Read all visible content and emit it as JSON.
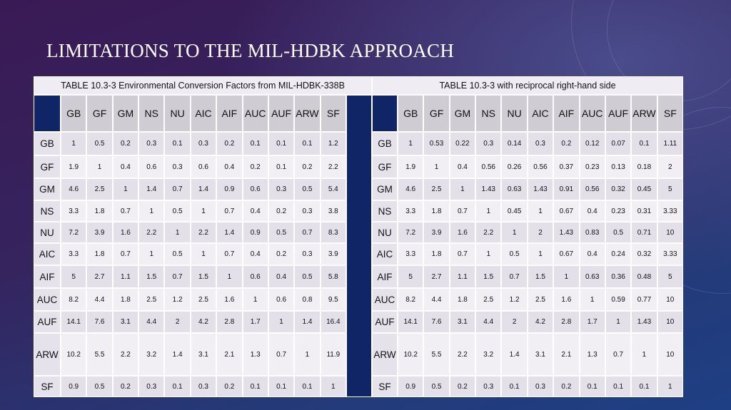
{
  "title": "LIMITATIONS TO THE MIL-HDBK APPROACH",
  "tables": [
    {
      "caption": "TABLE 10.3-3 Environmental Conversion Factors from MIL-HDBK-338B",
      "columns": [
        "GB",
        "GF",
        "GM",
        "NS",
        "NU",
        "AIC",
        "AIF",
        "AUC",
        "AUF",
        "ARW",
        "SF"
      ],
      "rows": [
        {
          "label": "GB",
          "cells": [
            "1",
            "0.5",
            "0.2",
            "0.3",
            "0.1",
            "0.3",
            "0.2",
            "0.1",
            "0.1",
            "0.1",
            "1.2"
          ]
        },
        {
          "label": "GF",
          "cells": [
            "1.9",
            "1",
            "0.4",
            "0.6",
            "0.3",
            "0.6",
            "0.4",
            "0.2",
            "0.1",
            "0.2",
            "2.2"
          ]
        },
        {
          "label": "GM",
          "cells": [
            "4.6",
            "2.5",
            "1",
            "1.4",
            "0.7",
            "1.4",
            "0.9",
            "0.6",
            "0.3",
            "0.5",
            "5.4"
          ]
        },
        {
          "label": "NS",
          "cells": [
            "3.3",
            "1.8",
            "0.7",
            "1",
            "0.5",
            "1",
            "0.7",
            "0.4",
            "0.2",
            "0.3",
            "3.8"
          ]
        },
        {
          "label": "NU",
          "cells": [
            "7.2",
            "3.9",
            "1.6",
            "2.2",
            "1",
            "2.2",
            "1.4",
            "0.9",
            "0.5",
            "0.7",
            "8.3"
          ]
        },
        {
          "label": "AIC",
          "cells": [
            "3.3",
            "1.8",
            "0.7",
            "1",
            "0.5",
            "1",
            "0.7",
            "0.4",
            "0.2",
            "0.3",
            "3.9"
          ]
        },
        {
          "label": "AIF",
          "cells": [
            "5",
            "2.7",
            "1.1",
            "1.5",
            "0.7",
            "1.5",
            "1",
            "0.6",
            "0.4",
            "0.5",
            "5.8"
          ]
        },
        {
          "label": "AUC",
          "cells": [
            "8.2",
            "4.4",
            "1.8",
            "2.5",
            "1.2",
            "2.5",
            "1.6",
            "1",
            "0.6",
            "0.8",
            "9.5"
          ]
        },
        {
          "label": "AUF",
          "cells": [
            "14.1",
            "7.6",
            "3.1",
            "4.4",
            "2",
            "4.2",
            "2.8",
            "1.7",
            "1",
            "1.4",
            "16.4"
          ]
        },
        {
          "label": "ARW",
          "cells": [
            "10.2",
            "5.5",
            "2.2",
            "3.2",
            "1.4",
            "3.1",
            "2.1",
            "1.3",
            "0.7",
            "1",
            "11.9"
          ]
        },
        {
          "label": "SF",
          "cells": [
            "0.9",
            "0.5",
            "0.2",
            "0.3",
            "0.1",
            "0.3",
            "0.2",
            "0.1",
            "0.1",
            "0.1",
            "1"
          ]
        }
      ]
    },
    {
      "caption": "TABLE 10.3-3 with reciprocal right-hand side",
      "columns": [
        "GB",
        "GF",
        "GM",
        "NS",
        "NU",
        "AIC",
        "AIF",
        "AUC",
        "AUF",
        "ARW",
        "SF"
      ],
      "rows": [
        {
          "label": "GB",
          "cells": [
            "1",
            "0.53",
            "0.22",
            "0.3",
            "0.14",
            "0.3",
            "0.2",
            "0.12",
            "0.07",
            "0.1",
            "1.11"
          ]
        },
        {
          "label": "GF",
          "cells": [
            "1.9",
            "1",
            "0.4",
            "0.56",
            "0.26",
            "0.56",
            "0.37",
            "0.23",
            "0.13",
            "0.18",
            "2"
          ]
        },
        {
          "label": "GM",
          "cells": [
            "4.6",
            "2.5",
            "1",
            "1.43",
            "0.63",
            "1.43",
            "0.91",
            "0.56",
            "0.32",
            "0.45",
            "5"
          ]
        },
        {
          "label": "NS",
          "cells": [
            "3.3",
            "1.8",
            "0.7",
            "1",
            "0.45",
            "1",
            "0.67",
            "0.4",
            "0.23",
            "0.31",
            "3.33"
          ]
        },
        {
          "label": "NU",
          "cells": [
            "7.2",
            "3.9",
            "1.6",
            "2.2",
            "1",
            "2",
            "1.43",
            "0.83",
            "0.5",
            "0.71",
            "10"
          ]
        },
        {
          "label": "AIC",
          "cells": [
            "3.3",
            "1.8",
            "0.7",
            "1",
            "0.5",
            "1",
            "0.67",
            "0.4",
            "0.24",
            "0.32",
            "3.33"
          ]
        },
        {
          "label": "AIF",
          "cells": [
            "5",
            "2.7",
            "1.1",
            "1.5",
            "0.7",
            "1.5",
            "1",
            "0.63",
            "0.36",
            "0.48",
            "5"
          ]
        },
        {
          "label": "AUC",
          "cells": [
            "8.2",
            "4.4",
            "1.8",
            "2.5",
            "1.2",
            "2.5",
            "1.6",
            "1",
            "0.59",
            "0.77",
            "10"
          ]
        },
        {
          "label": "AUF",
          "cells": [
            "14.1",
            "7.6",
            "3.1",
            "4.4",
            "2",
            "4.2",
            "2.8",
            "1.7",
            "1",
            "1.43",
            "10"
          ]
        },
        {
          "label": "ARW",
          "cells": [
            "10.2",
            "5.5",
            "2.2",
            "3.2",
            "1.4",
            "3.1",
            "2.1",
            "1.3",
            "0.7",
            "1",
            "10"
          ]
        },
        {
          "label": "SF",
          "cells": [
            "0.9",
            "0.5",
            "0.2",
            "0.3",
            "0.1",
            "0.3",
            "0.2",
            "0.1",
            "0.1",
            "0.1",
            "1"
          ]
        }
      ]
    }
  ]
}
